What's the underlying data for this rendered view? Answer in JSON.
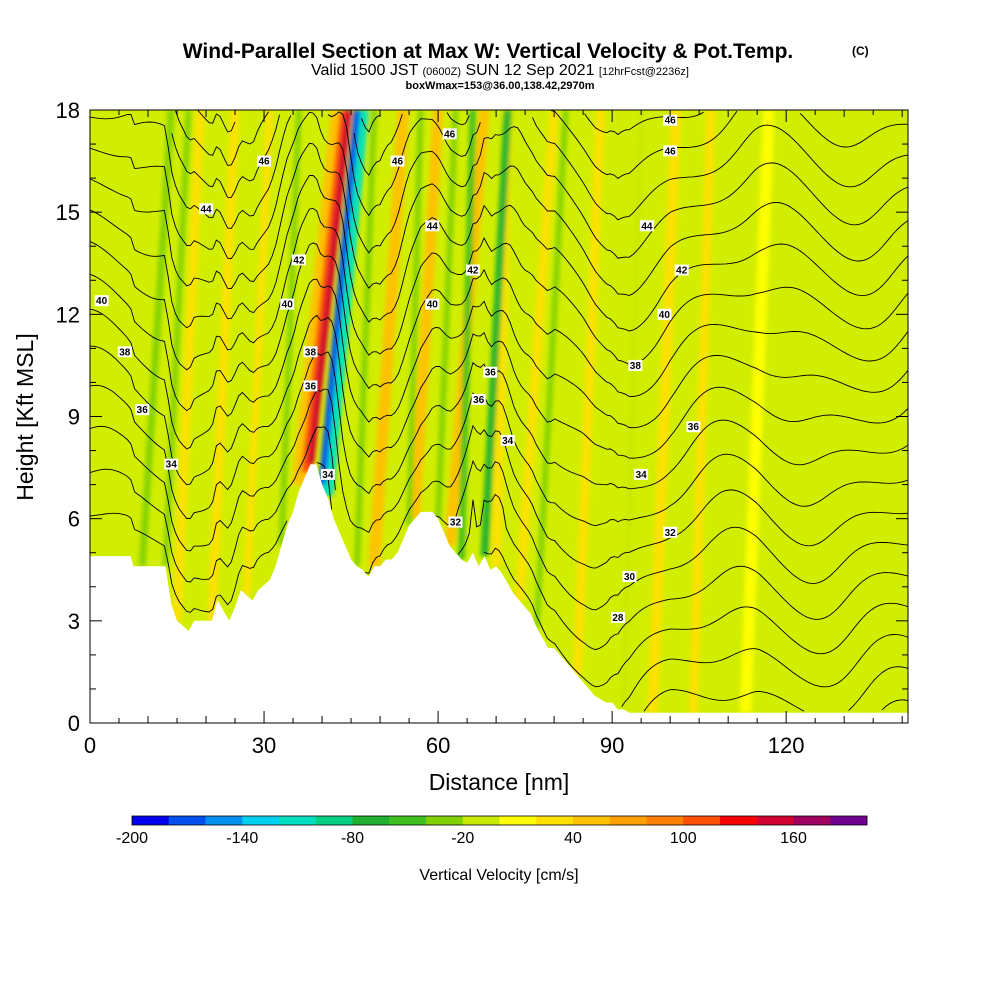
{
  "chart_data": {
    "type": "heatmap",
    "title": "Wind-Parallel Section at Max W: Vertical Velocity & Pot.Temp.",
    "title_mark": "(C)",
    "subtitle_parts": [
      "Valid 1500 JST",
      "(0600Z)",
      "SUN 12 Sep 2021",
      "[12hrFcst@2236z]"
    ],
    "subtitle2": "boxWmax=153@36.00,138.42,2970m",
    "xlabel": "Distance [nm]",
    "ylabel": "Height [Kft MSL]",
    "xlim": [
      0,
      141
    ],
    "ylim": [
      0,
      18
    ],
    "x_ticks": [
      "0",
      "30",
      "60",
      "90",
      "120"
    ],
    "y_ticks": [
      "0",
      "3",
      "6",
      "9",
      "12",
      "15",
      "18"
    ],
    "colorbar": {
      "label": "Vertical Velocity [cm/s]",
      "ticks": [
        "-200",
        "-140",
        "-80",
        "-20",
        "40",
        "100",
        "160"
      ],
      "bins": [
        -200,
        -180,
        -160,
        -140,
        -120,
        -100,
        -80,
        -60,
        -40,
        -20,
        0,
        20,
        40,
        60,
        80,
        100,
        120,
        140,
        160,
        180,
        200
      ],
      "colors": [
        "#0000ee",
        "#0050f0",
        "#0090f0",
        "#00d0f0",
        "#00e0c0",
        "#00d080",
        "#20b030",
        "#40c020",
        "#80d000",
        "#c8e800",
        "#ffff00",
        "#ffe000",
        "#ffc000",
        "#ffa000",
        "#ff8000",
        "#ff5000",
        "#ff0000",
        "#d00030",
        "#a00060",
        "#700090"
      ]
    },
    "grid": false,
    "updraft_max_cm_s": 153,
    "theta_labels": [
      {
        "v": "46",
        "x": 30,
        "y": 16.5
      },
      {
        "v": "46",
        "x": 62,
        "y": 17.3
      },
      {
        "v": "46",
        "x": 53,
        "y": 16.5
      },
      {
        "v": "46",
        "x": 100,
        "y": 17.7
      },
      {
        "v": "46",
        "x": 100,
        "y": 16.8
      },
      {
        "v": "44",
        "x": 20,
        "y": 15.1
      },
      {
        "v": "44",
        "x": 59,
        "y": 14.6
      },
      {
        "v": "44",
        "x": 96,
        "y": 14.6
      },
      {
        "v": "42",
        "x": 36,
        "y": 13.6
      },
      {
        "v": "42",
        "x": 66,
        "y": 13.3
      },
      {
        "v": "42",
        "x": 102,
        "y": 13.3
      },
      {
        "v": "40",
        "x": 2,
        "y": 12.4
      },
      {
        "v": "40",
        "x": 34,
        "y": 12.3
      },
      {
        "v": "40",
        "x": 59,
        "y": 12.3
      },
      {
        "v": "40",
        "x": 99,
        "y": 12.0
      },
      {
        "v": "38",
        "x": 6,
        "y": 10.9
      },
      {
        "v": "38",
        "x": 38,
        "y": 10.9
      },
      {
        "v": "36",
        "x": 38,
        "y": 9.9
      },
      {
        "v": "36",
        "x": 69,
        "y": 10.3
      },
      {
        "v": "36",
        "x": 67,
        "y": 9.5
      },
      {
        "v": "38",
        "x": 94,
        "y": 10.5
      },
      {
        "v": "36",
        "x": 104,
        "y": 8.7
      },
      {
        "v": "36",
        "x": 9,
        "y": 9.2
      },
      {
        "v": "34",
        "x": 14,
        "y": 7.6
      },
      {
        "v": "34",
        "x": 41,
        "y": 7.3
      },
      {
        "v": "34",
        "x": 72,
        "y": 8.3
      },
      {
        "v": "34",
        "x": 95,
        "y": 7.3
      },
      {
        "v": "32",
        "x": 63,
        "y": 5.9
      },
      {
        "v": "32",
        "x": 100,
        "y": 5.6
      },
      {
        "v": "30",
        "x": 93,
        "y": 4.3
      },
      {
        "v": "28",
        "x": 91,
        "y": 3.1
      }
    ],
    "terrain_profile": {
      "x": [
        0,
        7,
        7.5,
        8,
        13,
        14,
        15,
        17,
        18,
        21,
        22,
        24,
        25,
        26,
        28,
        29,
        31,
        32,
        33,
        34,
        35,
        36,
        37,
        38,
        39,
        40,
        41,
        42,
        43,
        44,
        45,
        46,
        47,
        48,
        49,
        50,
        51,
        52,
        53,
        54,
        55,
        56,
        57,
        58,
        59,
        60,
        61,
        62,
        63,
        64,
        65,
        66,
        67,
        68,
        69,
        70,
        71,
        72,
        73,
        74,
        75,
        76,
        77,
        78,
        79,
        80,
        81,
        82,
        83,
        84,
        85,
        86,
        87,
        88,
        89,
        90,
        91,
        92,
        93,
        94,
        95,
        96,
        97,
        98,
        100,
        103,
        141
      ],
      "h": [
        4.9,
        4.9,
        4.6,
        4.6,
        4.6,
        3.5,
        3.0,
        2.7,
        3.0,
        3.0,
        3.6,
        3.0,
        3.4,
        3.9,
        3.6,
        3.9,
        4.2,
        4.6,
        5.2,
        5.8,
        6.2,
        6.8,
        7.2,
        7.6,
        7.6,
        7.0,
        6.6,
        6.0,
        5.6,
        5.2,
        4.8,
        4.6,
        4.5,
        4.3,
        4.6,
        4.6,
        4.8,
        4.8,
        5.0,
        5.4,
        5.8,
        6.0,
        6.2,
        6.2,
        6.2,
        6.0,
        5.6,
        5.2,
        5.0,
        4.8,
        4.7,
        5.0,
        4.6,
        4.9,
        4.5,
        4.6,
        4.4,
        4.1,
        3.8,
        3.6,
        3.4,
        3.2,
        2.8,
        2.5,
        2.2,
        2.2,
        2.0,
        1.8,
        1.6,
        1.4,
        1.2,
        1.0,
        0.8,
        0.7,
        0.6,
        0.6,
        0.4,
        0.4,
        0.3,
        0.3,
        0.3,
        0.3,
        0.3,
        0.3,
        0.3,
        0.3,
        0.3
      ]
    },
    "theta_ground": [
      {
        "x": 0,
        "t": 31
      },
      {
        "x": 15,
        "t": 31
      },
      {
        "x": 30,
        "t": 32
      },
      {
        "x": 41,
        "t": 33
      },
      {
        "x": 50,
        "t": 32.5
      },
      {
        "x": 60,
        "t": 31.5
      },
      {
        "x": 72,
        "t": 30.5
      },
      {
        "x": 85,
        "t": 29
      },
      {
        "x": 100,
        "t": 28
      },
      {
        "x": 115,
        "t": 27.5
      },
      {
        "x": 141,
        "t": 27.5
      }
    ],
    "updraft_streaks": [
      {
        "x0": 38,
        "x1": 44.5,
        "w": 1.2,
        "w_cm_s": 150
      },
      {
        "x0": 49,
        "x1": 54,
        "w": 2.0,
        "w_cm_s": 45
      },
      {
        "x0": 56,
        "x1": 60,
        "w": 1.8,
        "w_cm_s": 40
      },
      {
        "x0": 62,
        "x1": 68,
        "w": 1.8,
        "w_cm_s": 40
      },
      {
        "x0": 70,
        "x1": 72,
        "w": 1.6,
        "w_cm_s": 35
      },
      {
        "x0": 15,
        "x1": 19,
        "w": 1.5,
        "w_cm_s": 35
      },
      {
        "x0": 21,
        "x1": 25,
        "w": 1.5,
        "w_cm_s": 30
      },
      {
        "x0": 27,
        "x1": 31,
        "w": 1.2,
        "w_cm_s": 30
      },
      {
        "x0": 74,
        "x1": 80,
        "w": 1.5,
        "w_cm_s": 25
      },
      {
        "x0": 84,
        "x1": 88,
        "w": 1.5,
        "w_cm_s": 25
      },
      {
        "x0": 97,
        "x1": 101,
        "w": 1.8,
        "w_cm_s": 25
      },
      {
        "x0": 104,
        "x1": 107,
        "w": 1.5,
        "w_cm_s": 20
      },
      {
        "x0": 113,
        "x1": 117,
        "w": 2.0,
        "w_cm_s": 15
      }
    ],
    "downdraft_streaks": [
      {
        "x0": 40,
        "x1": 46,
        "w": 1.2,
        "w_cm_s": -180
      },
      {
        "x0": 9,
        "x1": 14,
        "w": 1.2,
        "w_cm_s": -40
      },
      {
        "x0": 13,
        "x1": 17,
        "w": 1.0,
        "w_cm_s": -35
      },
      {
        "x0": 33,
        "x1": 36,
        "w": 1.0,
        "w_cm_s": -40
      },
      {
        "x0": 46,
        "x1": 49,
        "w": 1.0,
        "w_cm_s": -30
      },
      {
        "x0": 55,
        "x1": 57,
        "w": 1.0,
        "w_cm_s": -30
      },
      {
        "x0": 64,
        "x1": 66,
        "w": 1.2,
        "w_cm_s": -60
      },
      {
        "x0": 68,
        "x1": 72,
        "w": 1.4,
        "w_cm_s": -70
      },
      {
        "x0": 60,
        "x1": 63,
        "w": 1.0,
        "w_cm_s": -35
      },
      {
        "x0": 77,
        "x1": 82,
        "w": 1.0,
        "w_cm_s": -25
      },
      {
        "x0": 92,
        "x1": 95,
        "w": 1.0,
        "w_cm_s": -20
      }
    ]
  }
}
